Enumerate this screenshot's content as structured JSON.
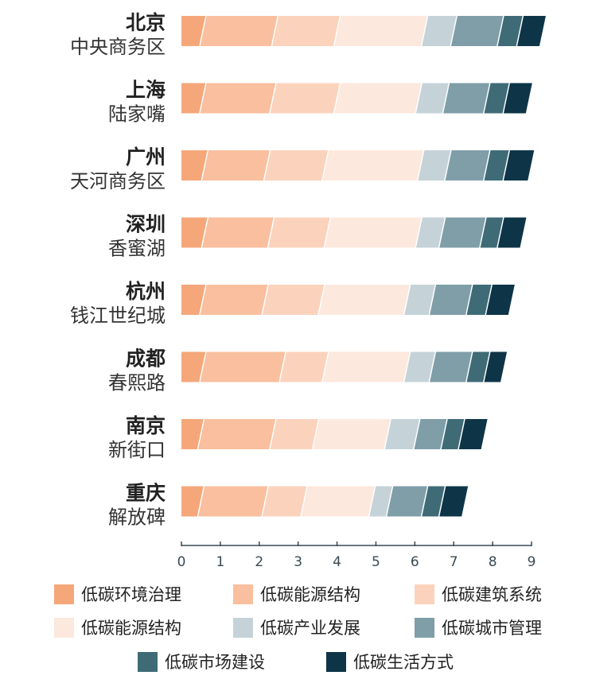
{
  "chart_data": {
    "type": "bar",
    "orientation": "horizontal",
    "stacked": true,
    "categories": [
      {
        "city": "北京",
        "district": "中央商务区"
      },
      {
        "city": "上海",
        "district": "陆家嘴"
      },
      {
        "city": "广州",
        "district": "天河商务区"
      },
      {
        "city": "深圳",
        "district": "香蜜湖"
      },
      {
        "city": "杭州",
        "district": "钱江世纪城"
      },
      {
        "city": "成都",
        "district": "春熙路"
      },
      {
        "city": "南京",
        "district": "新街口"
      },
      {
        "city": "重庆",
        "district": "解放碑"
      }
    ],
    "series": [
      {
        "name": "低碳环境治理",
        "color": "#f5a77a",
        "values": [
          0.55,
          0.55,
          0.6,
          0.6,
          0.55,
          0.55,
          0.5,
          0.5
        ]
      },
      {
        "name": "低碳能源结构",
        "color": "#f9bf9e",
        "values": [
          1.85,
          1.8,
          1.6,
          1.7,
          1.6,
          2.05,
          1.85,
          1.65
        ]
      },
      {
        "name": "低碳建筑系统",
        "color": "#fbd3bd",
        "values": [
          1.6,
          1.65,
          1.5,
          1.45,
          1.45,
          1.1,
          1.1,
          1.0
        ]
      },
      {
        "name": "低碳能源结构",
        "color": "#fce8dd",
        "values": [
          2.25,
          2.1,
          2.45,
          2.35,
          2.2,
          2.1,
          1.85,
          1.75
        ]
      },
      {
        "name": "低碳产业发展",
        "color": "#c5d3d8",
        "values": [
          0.75,
          0.7,
          0.7,
          0.6,
          0.65,
          0.65,
          0.75,
          0.45
        ]
      },
      {
        "name": "低碳城市管理",
        "color": "#7f9ea8",
        "values": [
          1.2,
          1.05,
          1.0,
          1.05,
          0.95,
          0.95,
          0.7,
          0.9
        ]
      },
      {
        "name": "低碳市场建设",
        "color": "#3f6b77",
        "values": [
          0.5,
          0.5,
          0.5,
          0.45,
          0.5,
          0.45,
          0.45,
          0.45
        ]
      },
      {
        "name": "低碳生活方式",
        "color": "#0e3547",
        "values": [
          0.6,
          0.6,
          0.65,
          0.6,
          0.6,
          0.45,
          0.6,
          0.6
        ]
      }
    ],
    "xlim": [
      0,
      9
    ],
    "xticks": [
      0,
      1,
      2,
      3,
      4,
      5,
      6,
      7,
      8,
      9
    ],
    "xlabel": "",
    "ylabel": "",
    "title": "",
    "grid": false,
    "legend_position": "bottom"
  }
}
